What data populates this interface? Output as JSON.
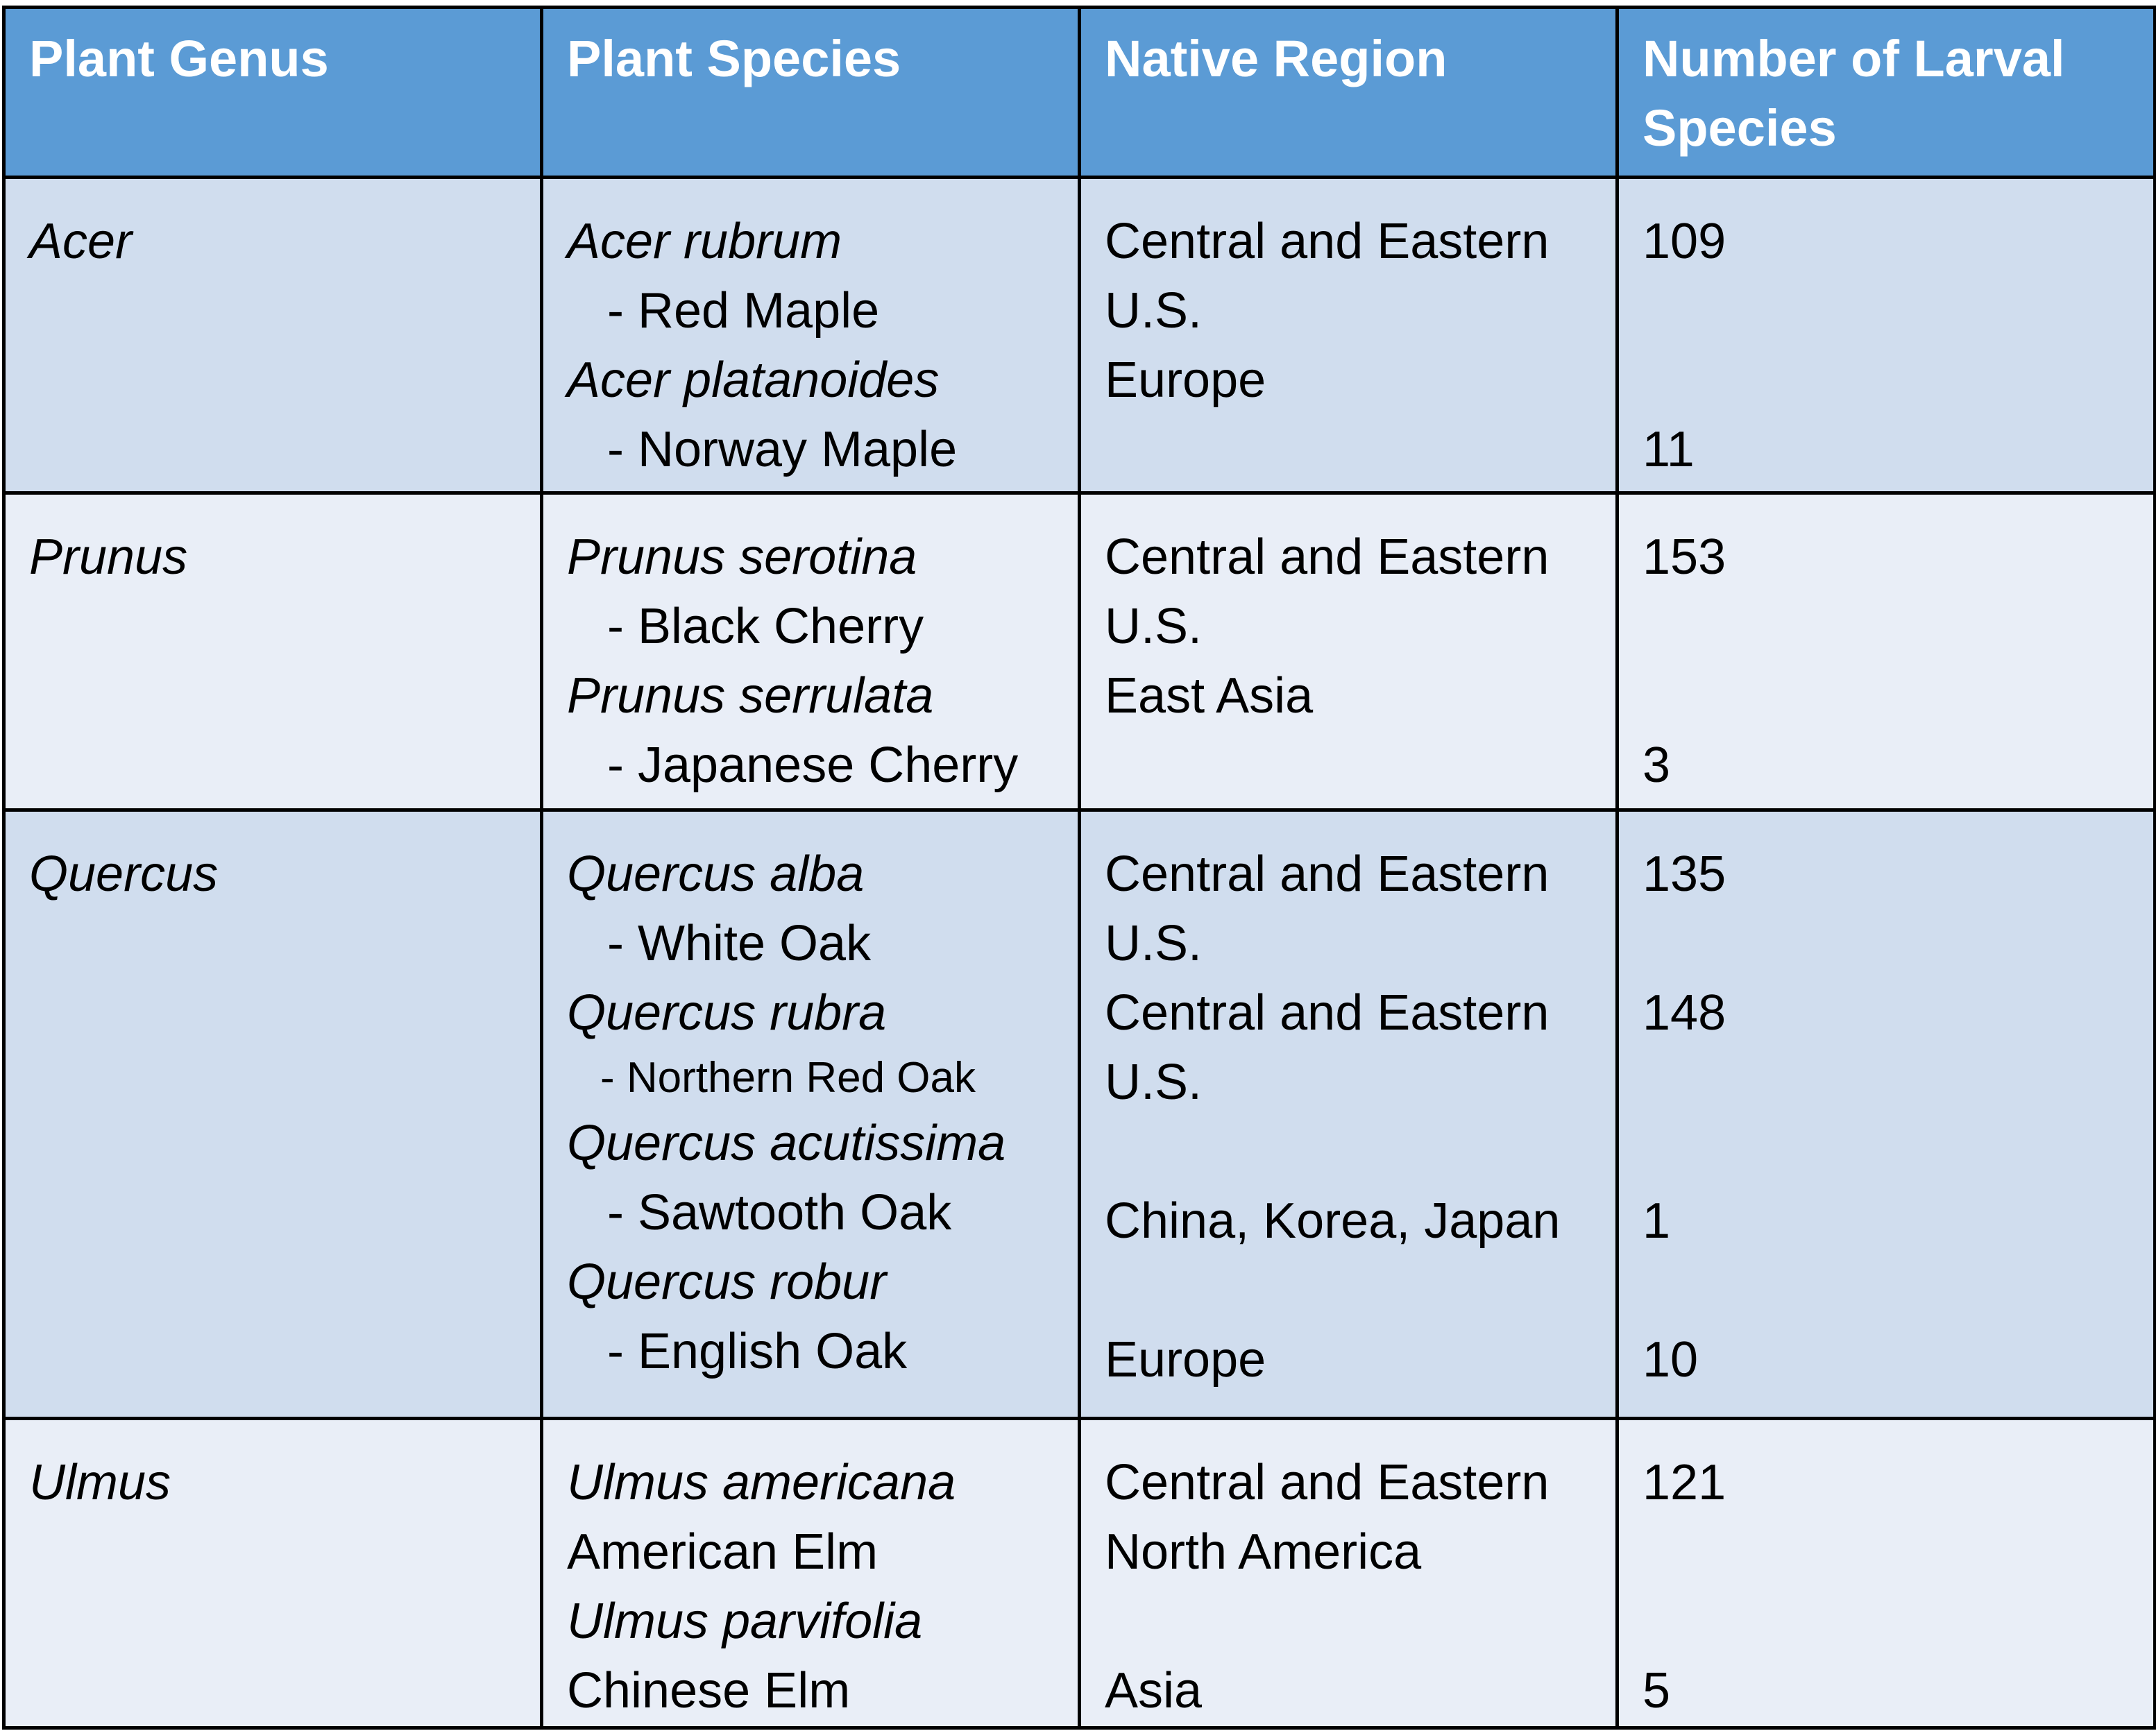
{
  "headers": [
    "Plant Genus",
    "Plant Species",
    "Native Region",
    "Number of Larval Species"
  ],
  "rows": [
    {
      "genus": "Acer",
      "species": [
        {
          "latin": "Acer rubrum",
          "common": "- Red Maple"
        },
        {
          "latin": "Acer platanoides",
          "common": "- Norway Maple"
        }
      ],
      "regions": [
        "Central and Eastern U.S.",
        "Europe"
      ],
      "counts": [
        "109",
        "11"
      ]
    },
    {
      "genus": "Prunus",
      "species": [
        {
          "latin": "Prunus serotina",
          "common": "- Black Cherry"
        },
        {
          "latin": "Prunus serrulata",
          "common": "- Japanese Cherry"
        }
      ],
      "regions": [
        "Central and Eastern U.S.",
        "East Asia"
      ],
      "counts": [
        "153",
        "3"
      ]
    },
    {
      "genus": "Quercus",
      "species": [
        {
          "latin": "Quercus alba",
          "common": "- White Oak"
        },
        {
          "latin": "Quercus rubra",
          "common": "- Northern Red Oak"
        },
        {
          "latin": "Quercus acutissima",
          "common": "- Sawtooth Oak"
        },
        {
          "latin": "Quercus robur",
          "common": "- English Oak"
        }
      ],
      "regions": [
        "Central and Eastern U.S.",
        "Central and Eastern U.S.",
        "China, Korea, Japan",
        "Europe"
      ],
      "counts": [
        "135",
        "148",
        "1",
        "10"
      ]
    },
    {
      "genus": "Ulmus",
      "species": [
        {
          "latin": "Ulmus americana",
          "common": "American Elm"
        },
        {
          "latin": "Ulmus parvifolia",
          "common": "Chinese Elm"
        }
      ],
      "regions": [
        "Central and Eastern North America",
        "Asia"
      ],
      "counts": [
        "121",
        "5"
      ]
    }
  ]
}
